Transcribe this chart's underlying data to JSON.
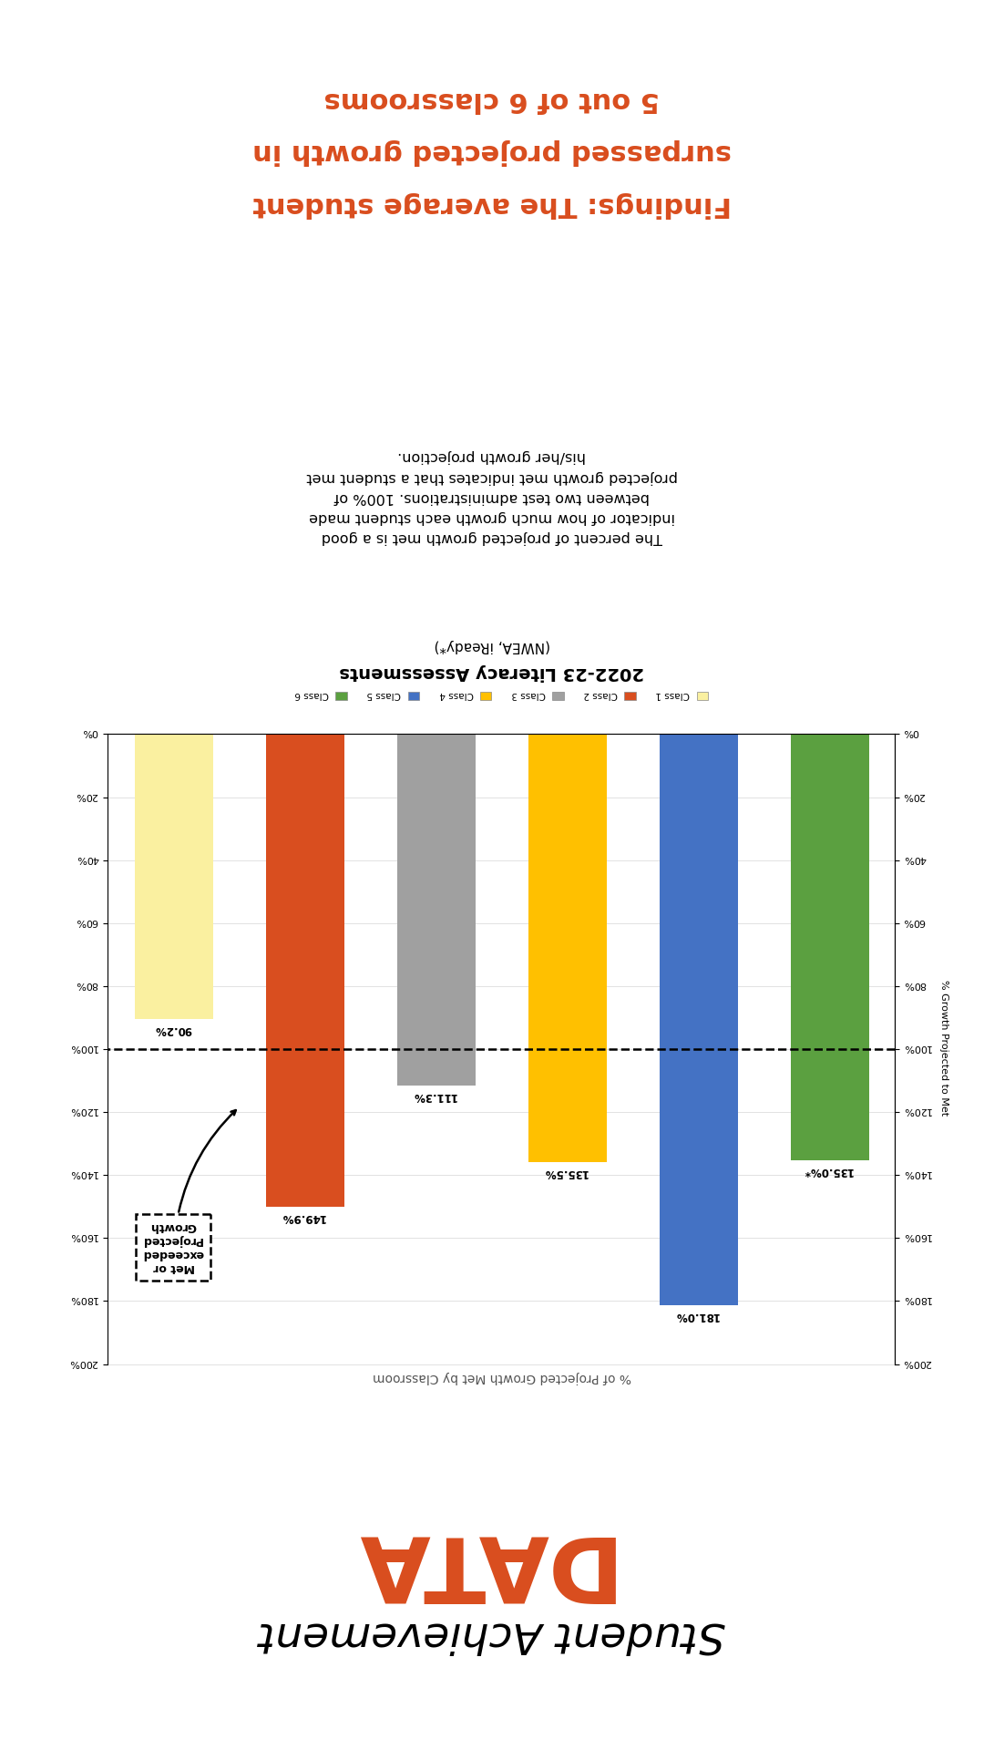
{
  "title_script": "Student Achievement",
  "title_bold": "DATA",
  "chart_title": "% of Projected Growth Met by Classroom",
  "subtitle": "2022-23 Literacy Assessments",
  "subtitle2": "(NWEA, iReady*)",
  "body_text": "The percent of projected growth met is a good\nindicator of how much growth each student made\nbetween two test administrations. 100% of\nprojected growth met indicates that a student met\nhis/her growth projection.",
  "findings_line1": "Findings: The average student",
  "findings_line2": "surpassed projected growth in",
  "findings_line3": "5 out of 6 classrooms",
  "categories": [
    "Class 6",
    "Class 5",
    "Class 4",
    "Class 3",
    "Class 2",
    "Class 1"
  ],
  "values": [
    135.0,
    181.0,
    135.5,
    111.3,
    149.9,
    90.2
  ],
  "bar_labels": [
    "135.0%*",
    "181.0%",
    "135.5%",
    "111.3%",
    "149.9%",
    "90.2%"
  ],
  "bar_colors": [
    "#5BA040",
    "#4472C4",
    "#FFC000",
    "#A0A0A0",
    "#D94E1F",
    "#FAF0A0"
  ],
  "dashed_line_y": 100,
  "ylabel": "% Growth Projected to Met",
  "ylim": [
    0,
    200
  ],
  "yticks": [
    0,
    20,
    40,
    60,
    80,
    100,
    120,
    140,
    160,
    180,
    200
  ],
  "ytick_labels": [
    "0%",
    "20%",
    "40%",
    "60%",
    "80%",
    "100%",
    "120%",
    "140%",
    "160%",
    "180%",
    "200%"
  ],
  "annotation_box": "Met or\nexceeded\nProjected\nGrowth",
  "background_color": "#FFFFFF",
  "title_color": "#D94E1F",
  "findings_color": "#D94E1F",
  "text_color": "#000000",
  "legend_order": [
    "Class 1",
    "Class 2",
    "Class 3",
    "Class 4",
    "Class 5",
    "Class 6"
  ],
  "legend_colors": [
    "#FAF0A0",
    "#D94E1F",
    "#A0A0A0",
    "#FFC000",
    "#4472C4",
    "#5BA040"
  ]
}
